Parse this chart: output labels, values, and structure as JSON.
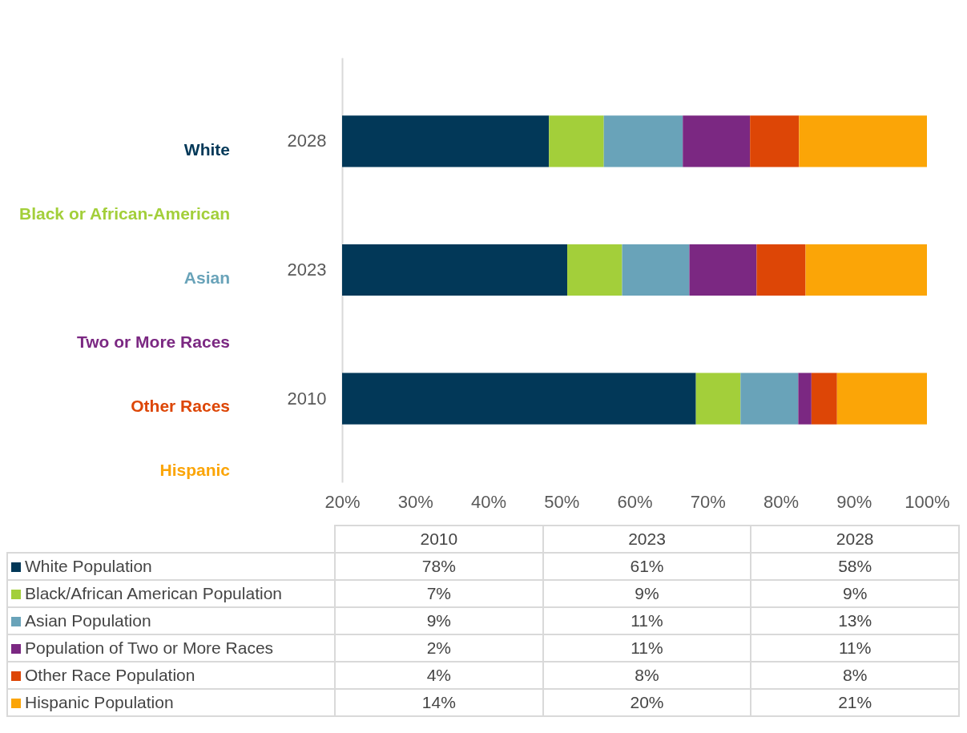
{
  "chart_data": [
    {
      "type": "bar",
      "orientation": "horizontal",
      "legend": "left",
      "categories": [
        "2028",
        "2023",
        "2010"
      ],
      "series": [
        {
          "name": "White",
          "color": "#023858",
          "base": [
            0,
            0,
            0
          ],
          "values": [
            48.3,
            50.8,
            68.4
          ]
        },
        {
          "name": "Black or African-American",
          "color": "#a3cf3a",
          "base": [
            48.3,
            50.8,
            68.4
          ],
          "values": [
            7.5,
            7.5,
            6.1
          ]
        },
        {
          "name": "Asian",
          "color": "#69a3b9",
          "base": [
            55.8,
            58.3,
            74.5
          ],
          "values": [
            10.8,
            9.2,
            7.9
          ]
        },
        {
          "name": "Two or More Races",
          "color": "#7b2882",
          "base": [
            66.6,
            67.5,
            82.4
          ],
          "values": [
            9.2,
            9.2,
            1.8
          ]
        },
        {
          "name": "Other Races",
          "color": "#dd4606",
          "base": [
            75.8,
            76.7,
            84.2
          ],
          "values": [
            6.7,
            6.7,
            3.5
          ]
        },
        {
          "name": "Hispanic",
          "color": "#fba507",
          "base": [
            82.5,
            83.4,
            87.7
          ],
          "values": [
            17.5,
            16.6,
            12.3
          ]
        }
      ],
      "xlim": [
        20,
        100
      ],
      "xticks": [
        {
          "value": 20,
          "label": "20%"
        },
        {
          "value": 30,
          "label": "30%"
        },
        {
          "value": 40,
          "label": "40%"
        },
        {
          "value": 50,
          "label": "50%"
        },
        {
          "value": 60,
          "label": "60%"
        },
        {
          "value": 70,
          "label": "70%"
        },
        {
          "value": 80,
          "label": "80%"
        },
        {
          "value": 90,
          "label": "90%"
        },
        {
          "value": 100,
          "label": "100%"
        }
      ]
    },
    {
      "type": "other",
      "categories": [
        "2010",
        "2023",
        "2028"
      ],
      "y_categories": [
        "White Population",
        "Black/African American Population",
        "Asian Population",
        "Population of Two or More Races",
        "Other Race Population",
        "Hispanic Population"
      ],
      "colors": [
        "#023858",
        "#a3cf3a",
        "#69a3b9",
        "#7b2882",
        "#dd4606",
        "#fba507"
      ],
      "cell_labels": [
        [
          "78%",
          "61%",
          "58%"
        ],
        [
          "7%",
          "9%",
          "9%"
        ],
        [
          "9%",
          "11%",
          "13%"
        ],
        [
          "2%",
          "11%",
          "11%"
        ],
        [
          "4%",
          "8%",
          "8%"
        ],
        [
          "14%",
          "20%",
          "21%"
        ]
      ]
    }
  ]
}
